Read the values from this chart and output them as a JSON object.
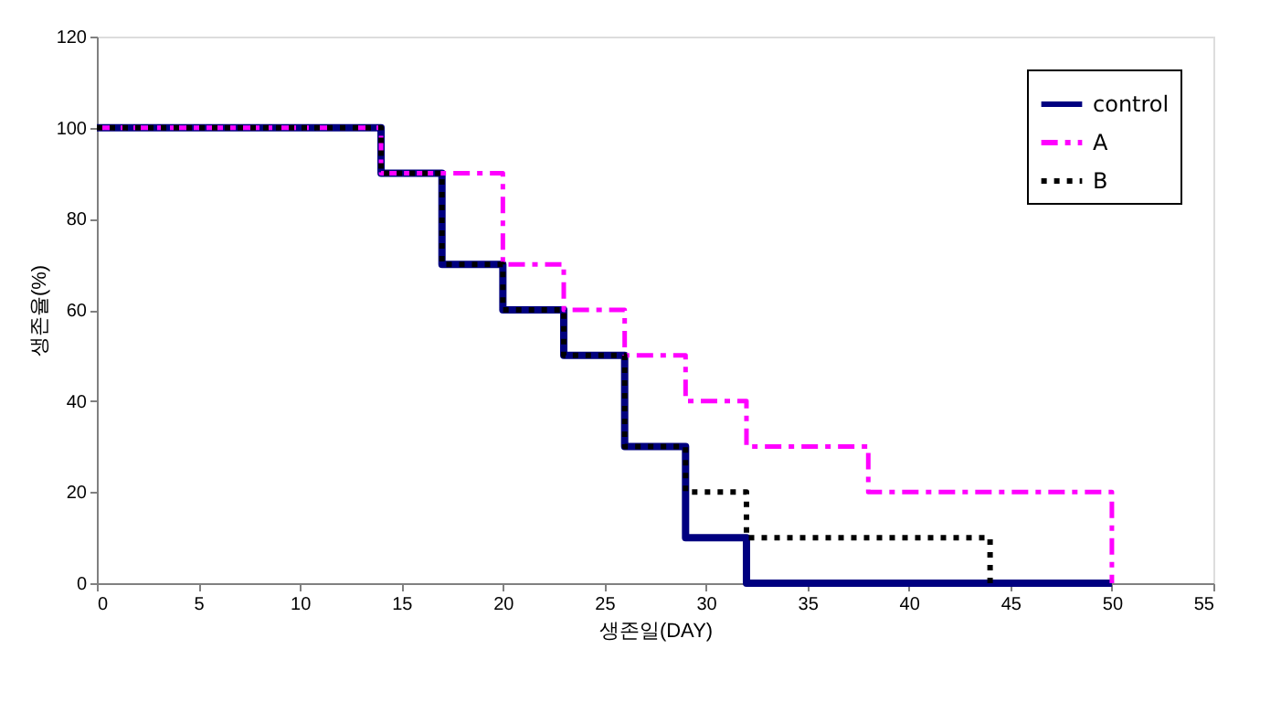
{
  "chart_data": {
    "type": "step",
    "xlabel": "생존일(DAY)",
    "ylabel": "생존율(%)",
    "xlim": [
      0,
      55
    ],
    "xticks": [
      0,
      5,
      10,
      15,
      20,
      25,
      30,
      35,
      40,
      45,
      50,
      55
    ],
    "ylim": [
      0,
      120
    ],
    "yticks": [
      0,
      20,
      40,
      60,
      80,
      100,
      120
    ],
    "grid": false,
    "legend": "top right",
    "marker": "none",
    "series": [
      {
        "name": "control",
        "color": "#000080",
        "line_style": "solid",
        "x": [
          0,
          14,
          17,
          20,
          23,
          26,
          29,
          32,
          50
        ],
        "values": [
          100,
          90,
          70,
          60,
          50,
          30,
          10,
          0,
          0
        ]
      },
      {
        "name": "A",
        "color": "#ff00ff",
        "line_style": "dashed",
        "x": [
          0,
          14,
          20,
          23,
          26,
          29,
          32,
          38,
          50
        ],
        "values": [
          100,
          90,
          70,
          60,
          50,
          40,
          30,
          20,
          0
        ]
      },
      {
        "name": "B",
        "color": "#000000",
        "line_style": "dotted",
        "x": [
          0,
          14,
          17,
          20,
          23,
          26,
          29,
          32,
          44
        ],
        "values": [
          100,
          90,
          70,
          60,
          50,
          30,
          20,
          10,
          0
        ]
      }
    ]
  }
}
